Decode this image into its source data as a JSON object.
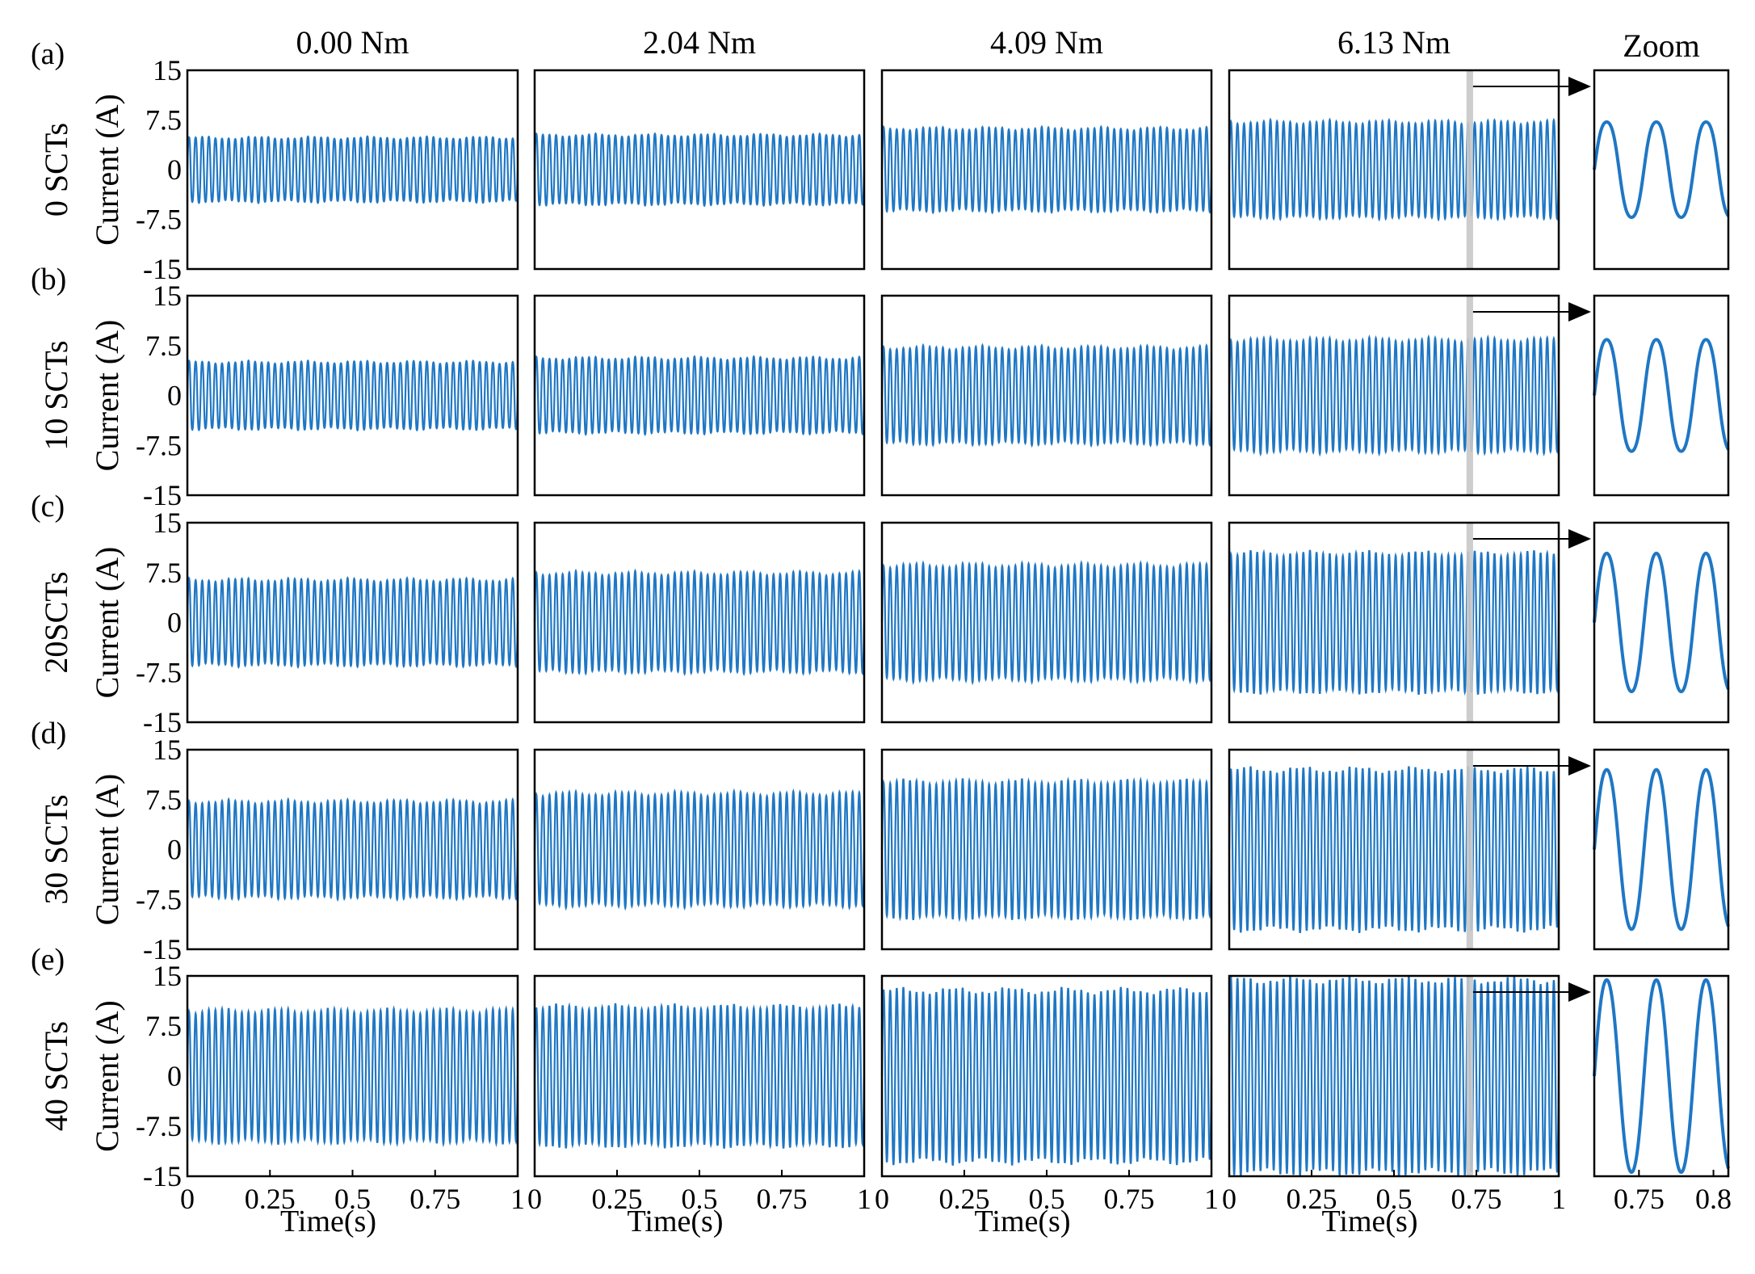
{
  "chart_data": {
    "type": "line",
    "columns": [
      "0.00 Nm",
      "2.04 Nm",
      "4.09 Nm",
      "6.13 Nm"
    ],
    "zoom_title": "Zoom",
    "xlabel": "Time(s)",
    "ylabel": "Current (A)",
    "ylim": [
      -15,
      15
    ],
    "xlim": [
      0,
      1
    ],
    "zoom_xlim": [
      0.72,
      0.81
    ],
    "highlight_window": [
      0.72,
      0.74
    ],
    "yticks": [
      "15",
      "7.5",
      "0",
      "-7.5",
      "-15"
    ],
    "yticks_values": [
      15,
      7.5,
      0,
      -7.5,
      -15
    ],
    "xticks": [
      "0",
      "0.25",
      "0.5",
      "0.75",
      "1"
    ],
    "xticks_values": [
      0,
      0.25,
      0.5,
      0.75,
      1
    ],
    "zoom_xticks": [
      "0.75",
      "0.8"
    ],
    "zoom_xticks_values": [
      0.75,
      0.8
    ],
    "cycles_in_1s": 50,
    "line_color": "#1f77c4",
    "highlight_color": "#c8c8c8",
    "rows": [
      {
        "panel": "(a)",
        "label": "0 SCTs",
        "amplitudes": [
          5.2,
          5.6,
          6.6,
          7.6
        ]
      },
      {
        "panel": "(b)",
        "label": "10 SCTs",
        "amplitudes": [
          5.4,
          6.0,
          7.6,
          8.8
        ]
      },
      {
        "panel": "(c)",
        "label": "20SCTs",
        "amplitudes": [
          6.8,
          7.8,
          9.0,
          10.8
        ]
      },
      {
        "panel": "(d)",
        "label": "30 SCTs",
        "amplitudes": [
          7.6,
          8.8,
          10.6,
          12.4
        ]
      },
      {
        "panel": "(e)",
        "label": "40 SCTs",
        "amplitudes": [
          10.2,
          10.8,
          13.2,
          14.8
        ]
      }
    ]
  }
}
